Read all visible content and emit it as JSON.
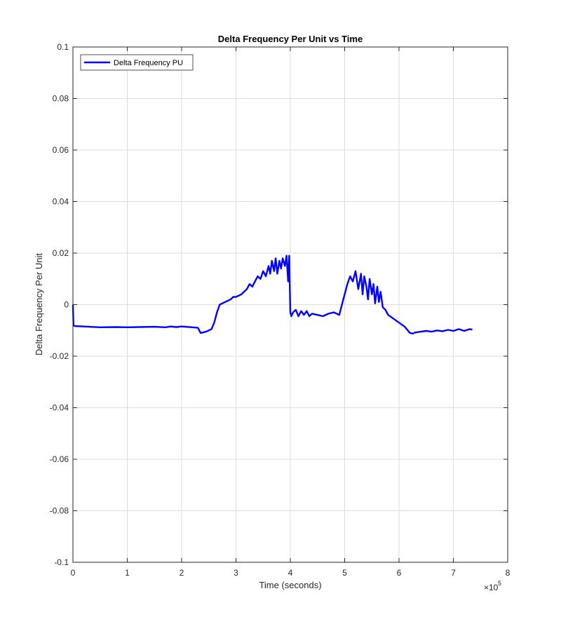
{
  "chart_data": {
    "type": "line",
    "title": "Delta Frequency Per Unit vs Time",
    "xlabel": "Time (seconds)",
    "ylabel": "Delta Frequency Per Unit",
    "x_exponent_label": "×10",
    "x_exponent_power": "5",
    "xlim": [
      0,
      8
    ],
    "ylim": [
      -0.1,
      0.1
    ],
    "x_scale": 100000,
    "xticks": [
      0,
      1,
      2,
      3,
      4,
      5,
      6,
      7,
      8
    ],
    "xtick_labels": [
      "0",
      "1",
      "2",
      "3",
      "4",
      "5",
      "6",
      "7",
      "8"
    ],
    "yticks": [
      -0.1,
      -0.08,
      -0.06,
      -0.04,
      -0.02,
      0,
      0.02,
      0.04,
      0.06,
      0.08,
      0.1
    ],
    "ytick_labels": [
      "-0.1",
      "-0.08",
      "-0.06",
      "-0.04",
      "-0.02",
      "0",
      "0.02",
      "0.04",
      "0.06",
      "0.08",
      "0.1"
    ],
    "grid": true,
    "legend_position": "top-left",
    "series": [
      {
        "name": "Delta Frequency PU",
        "color": "#0000ff",
        "x": [
          0,
          0.01,
          0.03,
          0.2,
          0.5,
          0.8,
          1.0,
          1.2,
          1.5,
          1.7,
          1.8,
          1.9,
          2.0,
          2.2,
          2.3,
          2.35,
          2.45,
          2.55,
          2.6,
          2.65,
          2.7,
          2.8,
          2.9,
          2.95,
          3.0,
          3.1,
          3.2,
          3.25,
          3.3,
          3.35,
          3.4,
          3.45,
          3.5,
          3.55,
          3.6,
          3.63,
          3.66,
          3.7,
          3.73,
          3.76,
          3.8,
          3.83,
          3.86,
          3.9,
          3.93,
          3.96,
          3.98,
          4.0,
          4.02,
          4.05,
          4.1,
          4.15,
          4.2,
          4.25,
          4.3,
          4.35,
          4.4,
          4.5,
          4.6,
          4.7,
          4.8,
          4.9,
          4.95,
          5.0,
          5.05,
          5.1,
          5.15,
          5.2,
          5.25,
          5.3,
          5.33,
          5.36,
          5.4,
          5.43,
          5.46,
          5.5,
          5.53,
          5.56,
          5.6,
          5.63,
          5.66,
          5.7,
          5.75,
          5.8,
          5.9,
          6.0,
          6.1,
          6.2,
          6.25,
          6.3,
          6.4,
          6.5,
          6.6,
          6.7,
          6.8,
          6.9,
          7.0,
          7.1,
          7.2,
          7.3,
          7.35
        ],
        "values": [
          0,
          -0.008,
          -0.0083,
          -0.0085,
          -0.0088,
          -0.0087,
          -0.0088,
          -0.0087,
          -0.0086,
          -0.0088,
          -0.0085,
          -0.0087,
          -0.0085,
          -0.0088,
          -0.009,
          -0.011,
          -0.0105,
          -0.0095,
          -0.007,
          -0.003,
          0.0,
          0.001,
          0.002,
          0.003,
          0.003,
          0.004,
          0.006,
          0.008,
          0.007,
          0.009,
          0.011,
          0.01,
          0.013,
          0.011,
          0.015,
          0.012,
          0.017,
          0.013,
          0.018,
          0.012,
          0.017,
          0.014,
          0.018,
          0.015,
          0.019,
          0.009,
          0.019,
          -0.003,
          -0.0045,
          -0.003,
          -0.002,
          -0.0045,
          -0.0025,
          -0.004,
          -0.0025,
          -0.0045,
          -0.0035,
          -0.004,
          -0.0045,
          -0.0035,
          -0.003,
          -0.004,
          0.0,
          0.004,
          0.008,
          0.011,
          0.009,
          0.013,
          0.006,
          0.012,
          0.004,
          0.011,
          0.007,
          0.002,
          0.01,
          0.004,
          0.008,
          0.0005,
          0.007,
          0.001,
          0.005,
          -0.001,
          -0.002,
          -0.004,
          -0.0055,
          -0.007,
          -0.0085,
          -0.011,
          -0.0112,
          -0.0108,
          -0.0105,
          -0.0102,
          -0.0105,
          -0.01,
          -0.0103,
          -0.0098,
          -0.0102,
          -0.0095,
          -0.0102,
          -0.0095,
          -0.0097
        ]
      }
    ]
  }
}
